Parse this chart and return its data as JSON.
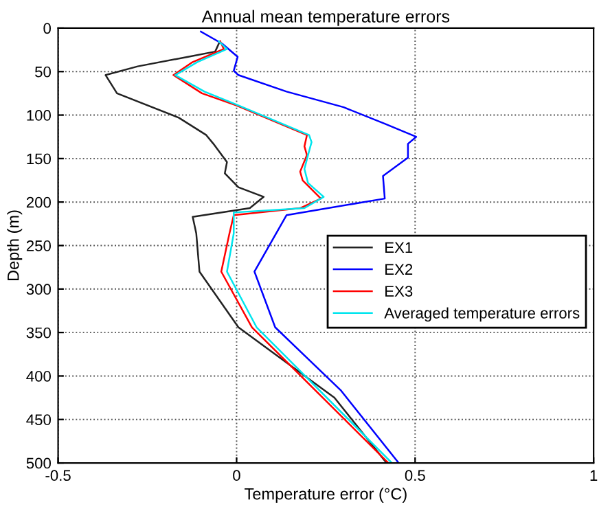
{
  "chart_data": {
    "type": "line",
    "title": "Annual mean temperature errors",
    "xlabel": "Temperature error (°C)",
    "ylabel": "Depth (m)",
    "xlim": [
      -0.5,
      1
    ],
    "xticks": [
      {
        "value": -0.5,
        "label": "-0.5"
      },
      0,
      0.5,
      1
    ],
    "ylim": [
      500,
      0
    ],
    "yticks": [
      0,
      50,
      100,
      150,
      200,
      250,
      300,
      350,
      400,
      450,
      500
    ],
    "grid": true,
    "legend": "center right",
    "line_style": "solid",
    "marker": "none",
    "series": [
      {
        "name": "EX1",
        "color": "#222222",
        "x": [
          -0.05,
          -0.06,
          -0.136,
          -0.277,
          -0.367,
          -0.335,
          -0.162,
          -0.085,
          -0.065,
          -0.027,
          -0.033,
          0.005,
          0.076,
          0.037,
          -0.123,
          -0.113,
          -0.104,
          0.005,
          0.274,
          0.42
        ],
        "values": [
          18,
          27,
          33,
          44,
          54,
          75,
          103,
          123,
          133,
          154,
          167,
          183,
          194,
          207,
          217,
          236,
          280,
          344,
          425,
          500
        ]
      },
      {
        "name": "EX2",
        "color": "#0000ff",
        "x": [
          -0.1,
          -0.04,
          0.003,
          -0.008,
          0.005,
          0.14,
          0.3,
          0.415,
          0.503,
          0.48,
          0.48,
          0.41,
          0.415,
          0.14,
          0.05,
          0.108,
          0.293,
          0.454
        ],
        "values": [
          4,
          18,
          33,
          49,
          54,
          73,
          91,
          110,
          125,
          133,
          149,
          170,
          196,
          215,
          280,
          344,
          417,
          500
        ]
      },
      {
        "name": "EX3",
        "color": "#ff0000",
        "x": [
          -0.046,
          -0.036,
          -0.123,
          -0.177,
          -0.097,
          0,
          0.197,
          0.19,
          0.197,
          0.178,
          0.185,
          0.236,
          0.178,
          -0.008,
          -0.02,
          -0.043,
          0.043,
          0.425
        ],
        "values": [
          15,
          24,
          39,
          54,
          75,
          89,
          123,
          136,
          146,
          165,
          175,
          196,
          207,
          215,
          236,
          280,
          344,
          500
        ]
      },
      {
        "name": "Averaged temperature errors",
        "color": "#00e5ee",
        "x": [
          -0.05,
          -0.027,
          -0.11,
          -0.172,
          -0.09,
          0,
          0.203,
          0.21,
          0.2,
          0.19,
          0.2,
          0.244,
          0.19,
          -0.008,
          -0.008,
          -0.027,
          0.056,
          0.435
        ],
        "values": [
          15,
          24,
          39,
          54,
          73,
          88,
          123,
          131,
          146,
          162,
          178,
          194,
          207,
          212,
          236,
          280,
          344,
          500
        ]
      }
    ]
  }
}
